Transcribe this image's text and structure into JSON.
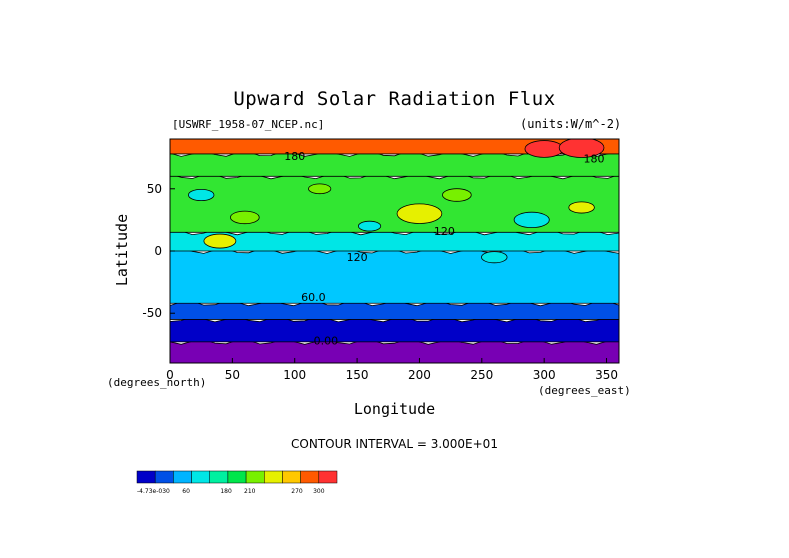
{
  "chart_data": {
    "type": "heatmap",
    "title": "Upward Solar Radiation Flux",
    "source_label": "[USWRF_1958-07_NCEP.nc]",
    "units_label": "(units:W/m^-2)",
    "xlabel": "Longitude",
    "ylabel": "Latitude",
    "x_unit_label": "(degrees_east)",
    "y_unit_label": "(degrees_north)",
    "xlim": [
      0,
      360
    ],
    "ylim": [
      -90,
      90
    ],
    "x_ticks": [
      "0",
      "50",
      "100",
      "150",
      "200",
      "250",
      "300",
      "350"
    ],
    "y_ticks": [
      "50",
      "0",
      "-50"
    ],
    "contour_interval": "CONTOUR INTERVAL = 3.000E+01",
    "contour_labels": [
      {
        "text": "180",
        "lon": 100,
        "lat": 73
      },
      {
        "text": "180",
        "lon": 340,
        "lat": 71
      },
      {
        "text": "120",
        "lon": 220,
        "lat": 13
      },
      {
        "text": "120",
        "lon": 150,
        "lat": -8
      },
      {
        "text": "60.0",
        "lon": 115,
        "lat": -40
      },
      {
        "text": "0.00",
        "lon": 125,
        "lat": -75
      }
    ],
    "latitude_bands": [
      {
        "lat_min": -90,
        "lat_max": -73,
        "value": 0
      },
      {
        "lat_min": -73,
        "lat_max": -55,
        "value": 30
      },
      {
        "lat_min": -55,
        "lat_max": -42,
        "value": 45
      },
      {
        "lat_min": -42,
        "lat_max": 0,
        "value": 90
      },
      {
        "lat_min": 0,
        "lat_max": 15,
        "value": 120
      },
      {
        "lat_min": 15,
        "lat_max": 60,
        "value": 150
      },
      {
        "lat_min": 60,
        "lat_max": 78,
        "value": 180
      },
      {
        "lat_min": 78,
        "lat_max": 90,
        "value": 300
      }
    ],
    "colorbar": {
      "labels": [
        "-4.73e-030",
        "60",
        "180",
        "210",
        "270",
        "300"
      ],
      "colors": [
        "#0000c8",
        "#0050e6",
        "#00b4ff",
        "#00e6e6",
        "#00f0a0",
        "#00e64b",
        "#78f000",
        "#e6f000",
        "#ffc800",
        "#ff5a00",
        "#ff3232"
      ]
    },
    "colors": {
      "purple": "#7800b4",
      "dark_blue": "#0000c8",
      "blue": "#0050e6",
      "sky": "#00c8ff",
      "cyan": "#00e6e6",
      "green": "#32e632",
      "light_green": "#78f000",
      "yellow": "#e6f000",
      "orange": "#ff5a00",
      "red": "#ff3232"
    }
  }
}
